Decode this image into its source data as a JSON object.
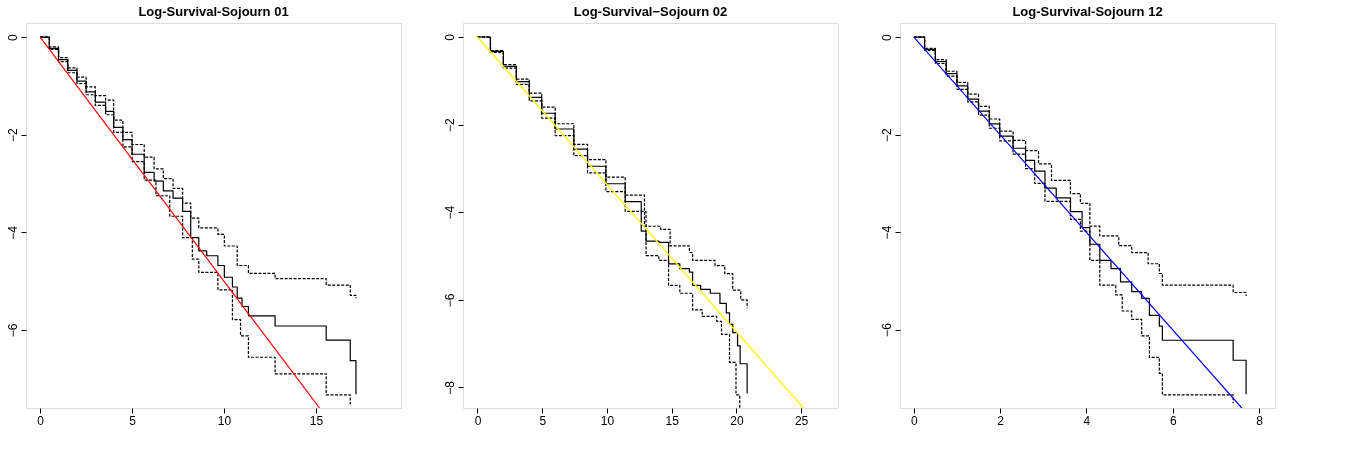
{
  "chart_data": [
    {
      "type": "step",
      "title": "Log-Survival-Sojourn 01",
      "xlim": [
        -0.77,
        19.63
      ],
      "ylim": [
        -7.6,
        0.29
      ],
      "xticks": [
        0,
        5,
        10,
        15
      ],
      "yticks": [
        0,
        -2,
        -4,
        -6
      ],
      "grid": false,
      "series": [
        {
          "color": "#000000",
          "line_style": "solid",
          "x": [
            0,
            0.5,
            1,
            1.5,
            2,
            2.5,
            3,
            3.56,
            4,
            4.5,
            5,
            5.66,
            6.2,
            6.7,
            7.23,
            7.75,
            8.19,
            8.63,
            9.06,
            9.67,
            10.02,
            10.46,
            10.72,
            10.98,
            11.33,
            12.78,
            15.56,
            16.87,
            17.18
          ],
          "values": [
            0,
            -0.23,
            -0.46,
            -0.68,
            -0.9,
            -1.12,
            -1.33,
            -1.52,
            -1.85,
            -2.1,
            -2.4,
            -2.77,
            -2.95,
            -3.15,
            -3.3,
            -3.57,
            -4.11,
            -4.38,
            -4.48,
            -4.68,
            -4.92,
            -5.12,
            -5.35,
            -5.52,
            -5.71,
            -5.92,
            -6.21,
            -6.63,
            -7.32
          ]
        },
        {
          "color": "#000000",
          "line_style": "dashed",
          "x": [
            0,
            0.5,
            1,
            1.5,
            2,
            2.5,
            3,
            3.56,
            4,
            4.5,
            5,
            5.66,
            6.2,
            6.7,
            7.23,
            7.75,
            8.19,
            8.63,
            9.67,
            10.02,
            10.72,
            11.33,
            12.78,
            15.56,
            16.87,
            17.18
          ],
          "values": [
            0,
            -0.2,
            -0.42,
            -0.63,
            -0.82,
            -1.02,
            -1.2,
            -1.29,
            -1.7,
            -1.95,
            -2.2,
            -2.46,
            -2.7,
            -2.9,
            -3.1,
            -3.4,
            -3.71,
            -3.91,
            -4.04,
            -4.28,
            -4.68,
            -4.84,
            -4.95,
            -5.08,
            -5.29,
            -5.35
          ]
        },
        {
          "color": "#000000",
          "line_style": "dashed",
          "x": [
            0,
            0.5,
            1,
            1.5,
            2,
            2.5,
            3,
            3.56,
            4,
            4.5,
            5,
            5.66,
            6.3,
            7.05,
            7.75,
            8.28,
            8.63,
            9.67,
            10.46,
            10.9,
            11.33,
            12.78,
            15.56,
            16.87
          ],
          "values": [
            0,
            -0.25,
            -0.5,
            -0.73,
            -0.95,
            -1.18,
            -1.4,
            -1.59,
            -1.95,
            -2.25,
            -2.55,
            -2.93,
            -3.25,
            -3.67,
            -4.11,
            -4.55,
            -4.82,
            -5.18,
            -5.79,
            -6.12,
            -6.56,
            -6.9,
            -7.33,
            -7.53
          ]
        },
        {
          "type": "line",
          "color": "#ff0000",
          "line_style": "solid",
          "x": [
            0,
            15.2
          ],
          "values": [
            0,
            -7.6
          ]
        }
      ]
    },
    {
      "type": "step",
      "title": "Log-Survival−Sojourn 02",
      "xlim": [
        -1.12,
        27.85
      ],
      "ylim": [
        -8.47,
        0.32
      ],
      "xticks": [
        0,
        5,
        10,
        15,
        20,
        25
      ],
      "yticks": [
        0,
        -2,
        -4,
        -6,
        -8
      ],
      "grid": false,
      "series": [
        {
          "color": "#000000",
          "line_style": "solid",
          "x": [
            0,
            1,
            2,
            3,
            4,
            4.96,
            6,
            7.44,
            8.5,
            9.92,
            11.41,
            12.65,
            13.02,
            14.01,
            14.76,
            15.63,
            16.37,
            16.62,
            17.24,
            17.98,
            18.73,
            19.22,
            19.47,
            19.72,
            20.09,
            20.29,
            20.83
          ],
          "values": [
            0,
            -0.33,
            -0.67,
            -1.02,
            -1.38,
            -1.74,
            -2.1,
            -2.56,
            -2.95,
            -3.35,
            -3.76,
            -4.43,
            -4.66,
            -4.69,
            -5.18,
            -5.29,
            -5.37,
            -5.67,
            -5.76,
            -5.85,
            -6.08,
            -6.3,
            -6.56,
            -6.75,
            -7.05,
            -7.46,
            -8.14
          ]
        },
        {
          "color": "#000000",
          "line_style": "dashed",
          "x": [
            0,
            1,
            2,
            3,
            4,
            4.96,
            6,
            7.44,
            8.5,
            9.92,
            11.41,
            12.9,
            14.14,
            14.88,
            16.37,
            16.62,
            18.35,
            19.1,
            19.72,
            20.34,
            20.83
          ],
          "values": [
            0,
            -0.31,
            -0.63,
            -0.96,
            -1.28,
            -1.6,
            -1.98,
            -2.45,
            -2.8,
            -3.2,
            -3.61,
            -4.32,
            -4.39,
            -4.77,
            -4.92,
            -5.1,
            -5.22,
            -5.4,
            -5.78,
            -6.0,
            -6.19
          ]
        },
        {
          "color": "#000000",
          "line_style": "dashed",
          "x": [
            0,
            1,
            2,
            3,
            4,
            4.96,
            6,
            7.44,
            8.5,
            9.92,
            11.41,
            13.02,
            14.01,
            14.76,
            15.63,
            16.62,
            17.36,
            18.48,
            18.85,
            19.47,
            19.97,
            20.26
          ],
          "values": [
            0,
            -0.35,
            -0.71,
            -1.08,
            -1.46,
            -1.85,
            -2.25,
            -2.71,
            -3.1,
            -3.53,
            -3.98,
            -4.99,
            -5.1,
            -5.67,
            -5.85,
            -6.23,
            -6.38,
            -6.49,
            -6.79,
            -7.43,
            -8.17,
            -8.47
          ]
        },
        {
          "type": "line",
          "color": "#ffff00",
          "line_style": "solid",
          "x": [
            0,
            25.17
          ],
          "values": [
            0,
            -8.47
          ]
        }
      ]
    },
    {
      "type": "step",
      "title": "Log-Survival-Sojourn 12",
      "xlim": [
        -0.32,
        8.37
      ],
      "ylim": [
        -7.61,
        0.29
      ],
      "xticks": [
        0,
        2,
        4,
        6,
        8
      ],
      "yticks": [
        0,
        -2,
        -4,
        -6
      ],
      "grid": false,
      "series": [
        {
          "color": "#000000",
          "line_style": "solid",
          "x": [
            0,
            0.25,
            0.5,
            0.75,
            1,
            1.25,
            1.5,
            1.75,
            1.99,
            2.3,
            2.59,
            2.8,
            3.04,
            3.3,
            3.63,
            3.9,
            4.08,
            4.31,
            4.57,
            4.79,
            5.05,
            5.28,
            5.46,
            5.69,
            5.76,
            7.4,
            7.7
          ],
          "values": [
            0,
            -0.25,
            -0.5,
            -0.75,
            -1.0,
            -1.27,
            -1.52,
            -1.78,
            -2.03,
            -2.28,
            -2.53,
            -2.75,
            -3.1,
            -3.3,
            -3.58,
            -3.91,
            -4.25,
            -4.58,
            -4.75,
            -5.02,
            -5.22,
            -5.36,
            -5.71,
            -5.93,
            -6.22,
            -6.63,
            -7.33
          ]
        },
        {
          "color": "#000000",
          "line_style": "dashed",
          "x": [
            0,
            0.25,
            0.5,
            0.75,
            1,
            1.25,
            1.5,
            1.75,
            1.99,
            2.3,
            2.59,
            2.89,
            3.19,
            3.63,
            3.86,
            4.08,
            4.31,
            4.75,
            5.05,
            5.43,
            5.69,
            5.76,
            7.4,
            7.7
          ],
          "values": [
            0,
            -0.23,
            -0.46,
            -0.7,
            -0.93,
            -1.17,
            -1.42,
            -1.68,
            -1.93,
            -2.12,
            -2.33,
            -2.6,
            -2.94,
            -3.21,
            -3.41,
            -3.88,
            -4.08,
            -4.28,
            -4.42,
            -4.65,
            -4.85,
            -5.09,
            -5.24,
            -5.31
          ]
        },
        {
          "color": "#000000",
          "line_style": "dashed",
          "x": [
            0,
            0.25,
            0.5,
            0.75,
            1,
            1.25,
            1.5,
            1.75,
            1.99,
            2.3,
            2.59,
            2.8,
            3.04,
            3.63,
            3.86,
            4.08,
            4.31,
            4.68,
            4.83,
            5.05,
            5.28,
            5.46,
            5.69,
            5.76,
            7.4
          ],
          "values": [
            0,
            -0.27,
            -0.54,
            -0.8,
            -1.07,
            -1.33,
            -1.6,
            -1.87,
            -2.13,
            -2.4,
            -2.7,
            -3.0,
            -3.37,
            -3.74,
            -3.98,
            -4.58,
            -5.09,
            -5.29,
            -5.62,
            -5.79,
            -6.13,
            -6.57,
            -6.9,
            -7.34,
            -7.51
          ]
        },
        {
          "type": "line",
          "color": "#0000ff",
          "line_style": "solid",
          "x": [
            0,
            7.6
          ],
          "values": [
            0,
            -7.61
          ]
        }
      ]
    }
  ]
}
